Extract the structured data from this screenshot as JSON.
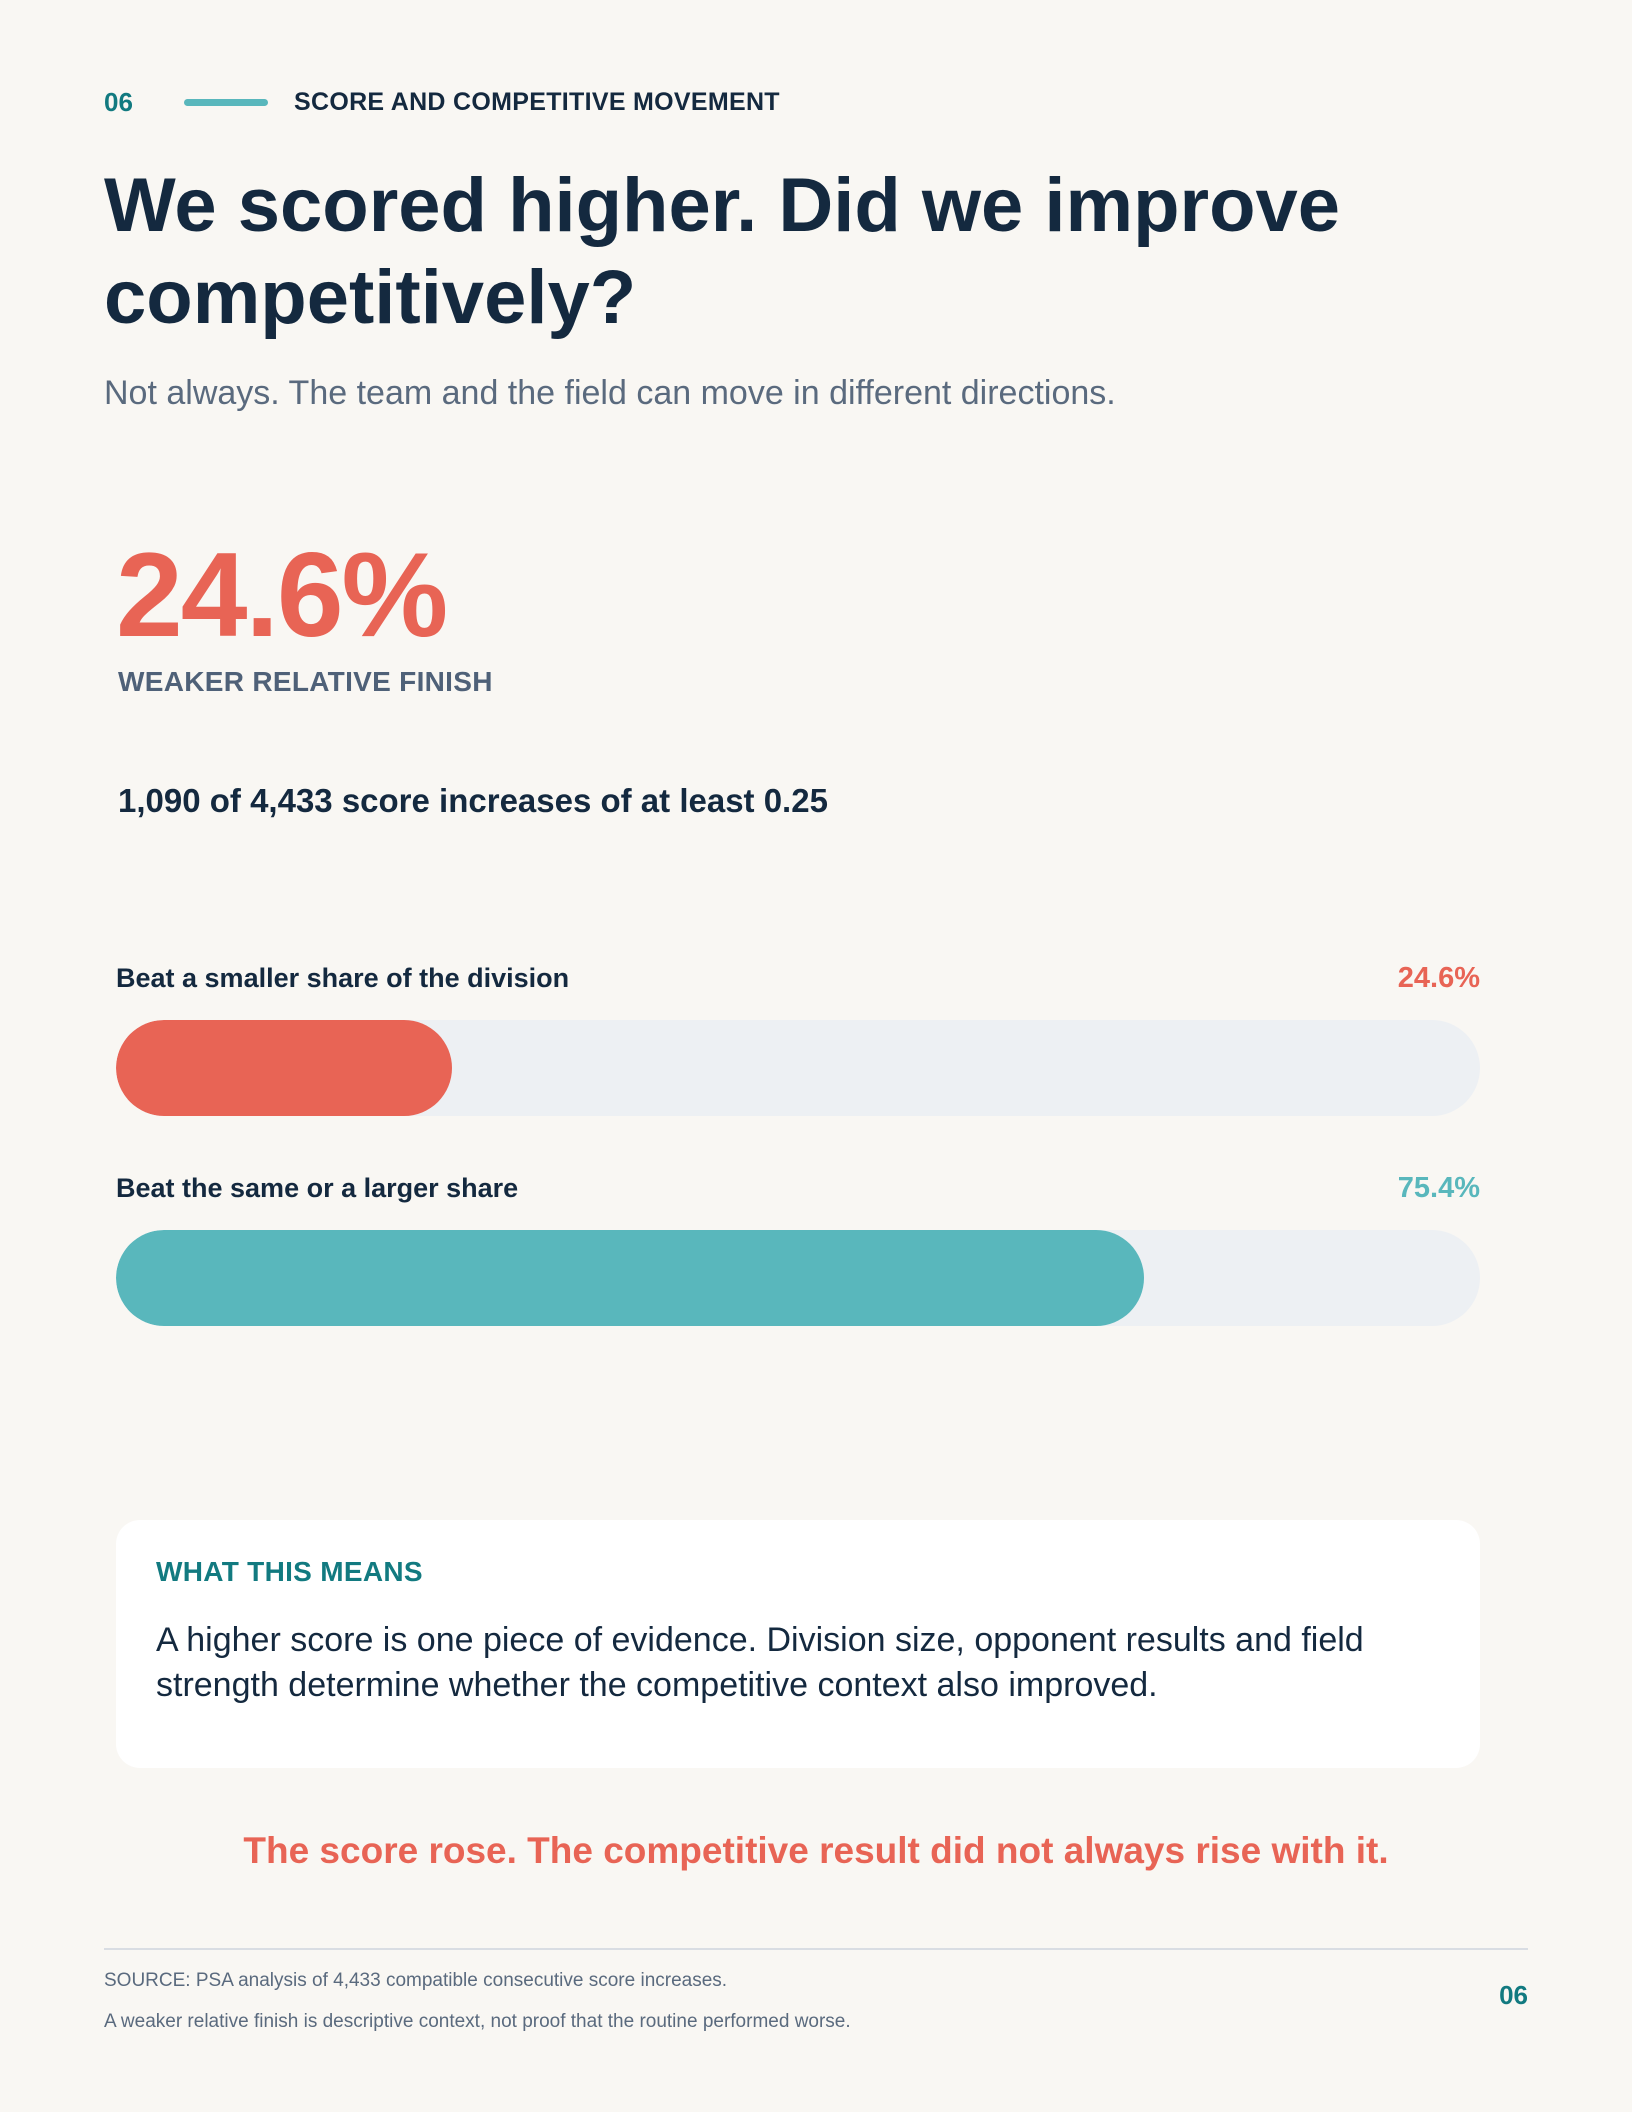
{
  "header": {
    "section_number": "06",
    "section_title": "SCORE AND COMPETITIVE MOVEMENT"
  },
  "headline": "We scored higher. Did we improve competitively?",
  "subhead": "Not always. The team and the field can move in different directions.",
  "big_stat": {
    "value": "24.6%",
    "label": "WEAKER RELATIVE FINISH",
    "detail": "1,090 of 4,433 score increases of at least 0.25"
  },
  "chart_data": {
    "type": "bar",
    "orientation": "horizontal",
    "categories": [
      "Beat a smaller share of the division",
      "Beat the same or a larger share"
    ],
    "values": [
      24.6,
      75.4
    ],
    "value_labels": [
      "24.6%",
      "75.4%"
    ],
    "colors": [
      "#e86455",
      "#59b7bc"
    ],
    "ylim": [
      0,
      100
    ]
  },
  "callout": {
    "title": "WHAT THIS MEANS",
    "body": "A higher score is one piece of evidence. Division size, opponent results and field strength determine whether the competitive context also improved."
  },
  "punchline": "The score rose. The competitive result did not always rise with it.",
  "footer": {
    "source": "SOURCE: PSA analysis of 4,433 compatible consecutive score increases.",
    "note": "A weaker relative finish is descriptive context, not proof that the routine performed worse.",
    "page_number": "06"
  },
  "colors": {
    "accent_red": "#e86455",
    "accent_teal": "#59b7bc",
    "accent_dark_teal": "#127a80",
    "ink": "#14293f",
    "background": "#f9f7f3"
  }
}
